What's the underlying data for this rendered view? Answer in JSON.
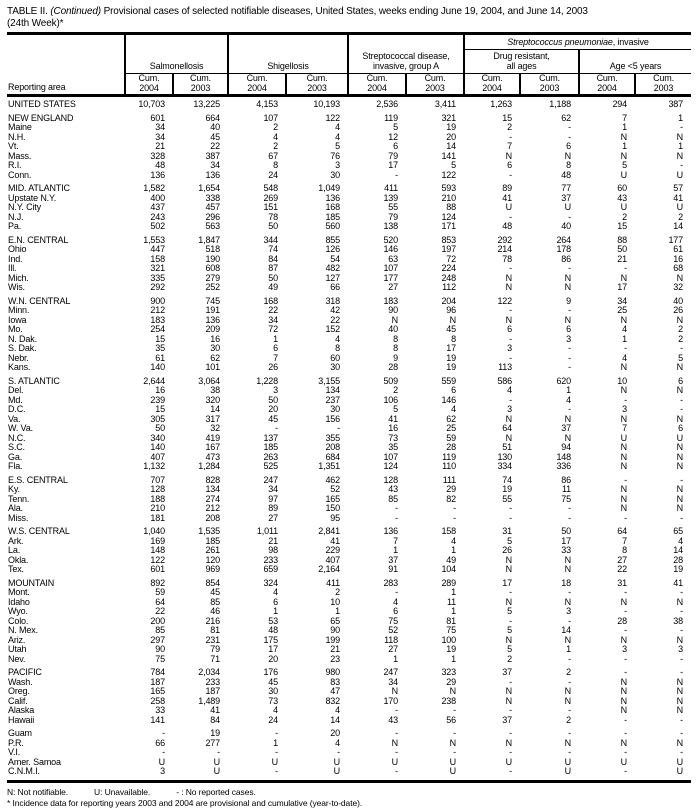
{
  "title": {
    "prefix": "TABLE II. ",
    "continued": "(Continued)",
    "rest": " Provisional cases of selected notifiable diseases, United States, weeks ending June 19, 2004, and June 14, 2003",
    "line2": "(24th Week)*"
  },
  "table": {
    "header": {
      "reporting_area": "Reporting area",
      "strep_pneumo": {
        "italic": "Streptococcus pneumoniae",
        "rest": ", invasive"
      },
      "groups": [
        {
          "label": "Salmonellosis"
        },
        {
          "label": "Shigellosis"
        },
        {
          "line1": "Streptococcal disease,",
          "line2": "invasive, group A"
        },
        {
          "line1": "Drug resistant,",
          "line2": "all ages"
        },
        {
          "label": "Age <5 years"
        }
      ],
      "columns": [
        {
          "cum": "Cum.",
          "year": "2004"
        },
        {
          "cum": "Cum.",
          "year": "2003"
        },
        {
          "cum": "Cum.",
          "year": "2004"
        },
        {
          "cum": "Cum.",
          "year": "2003"
        },
        {
          "cum": "Cum.",
          "year": "2004"
        },
        {
          "cum": "Cum.",
          "year": "2003"
        },
        {
          "cum": "Cum.",
          "year": "2004"
        },
        {
          "cum": "Cum.",
          "year": "2003"
        },
        {
          "cum": "Cum.",
          "year": "2004"
        },
        {
          "cum": "Cum.",
          "year": "2003"
        }
      ]
    },
    "rows": [
      {
        "area": "UNITED STATES",
        "values": [
          "10,703",
          "13,225",
          "4,153",
          "10,193",
          "2,536",
          "3,411",
          "1,263",
          "1,188",
          "294",
          "387"
        ]
      },
      {
        "area": "NEW ENGLAND",
        "section_start": true,
        "values": [
          "601",
          "664",
          "107",
          "122",
          "119",
          "321",
          "15",
          "62",
          "7",
          "1"
        ]
      },
      {
        "area": "Maine",
        "values": [
          "34",
          "40",
          "2",
          "4",
          "5",
          "19",
          "2",
          "-",
          "1",
          "-"
        ]
      },
      {
        "area": "N.H.",
        "values": [
          "34",
          "45",
          "4",
          "4",
          "12",
          "20",
          "-",
          "-",
          "N",
          "N"
        ]
      },
      {
        "area": "Vt.",
        "values": [
          "21",
          "22",
          "2",
          "5",
          "6",
          "14",
          "7",
          "6",
          "1",
          "1"
        ]
      },
      {
        "area": "Mass.",
        "values": [
          "328",
          "387",
          "67",
          "76",
          "79",
          "141",
          "N",
          "N",
          "N",
          "N"
        ]
      },
      {
        "area": "R.I.",
        "values": [
          "48",
          "34",
          "8",
          "3",
          "17",
          "5",
          "6",
          "8",
          "5",
          "-"
        ]
      },
      {
        "area": "Conn.",
        "values": [
          "136",
          "136",
          "24",
          "30",
          "-",
          "122",
          "-",
          "48",
          "U",
          "U"
        ]
      },
      {
        "area": "MID. ATLANTIC",
        "section_start": true,
        "values": [
          "1,582",
          "1,654",
          "548",
          "1,049",
          "411",
          "593",
          "89",
          "77",
          "60",
          "57"
        ]
      },
      {
        "area": "Upstate N.Y.",
        "values": [
          "400",
          "338",
          "269",
          "136",
          "139",
          "210",
          "41",
          "37",
          "43",
          "41"
        ]
      },
      {
        "area": "N.Y. City",
        "values": [
          "437",
          "457",
          "151",
          "168",
          "55",
          "88",
          "U",
          "U",
          "U",
          "U"
        ]
      },
      {
        "area": "N.J.",
        "values": [
          "243",
          "296",
          "78",
          "185",
          "79",
          "124",
          "-",
          "-",
          "2",
          "2"
        ]
      },
      {
        "area": "Pa.",
        "values": [
          "502",
          "563",
          "50",
          "560",
          "138",
          "171",
          "48",
          "40",
          "15",
          "14"
        ]
      },
      {
        "area": "E.N. CENTRAL",
        "section_start": true,
        "values": [
          "1,553",
          "1,847",
          "344",
          "855",
          "520",
          "853",
          "292",
          "264",
          "88",
          "177"
        ]
      },
      {
        "area": "Ohio",
        "values": [
          "447",
          "518",
          "74",
          "126",
          "146",
          "197",
          "214",
          "178",
          "50",
          "61"
        ]
      },
      {
        "area": "Ind.",
        "values": [
          "158",
          "190",
          "84",
          "54",
          "63",
          "72",
          "78",
          "86",
          "21",
          "16"
        ]
      },
      {
        "area": "Ill.",
        "values": [
          "321",
          "608",
          "87",
          "482",
          "107",
          "224",
          "-",
          "-",
          "-",
          "68"
        ]
      },
      {
        "area": "Mich.",
        "values": [
          "335",
          "279",
          "50",
          "127",
          "177",
          "248",
          "N",
          "N",
          "N",
          "N"
        ]
      },
      {
        "area": "Wis.",
        "values": [
          "292",
          "252",
          "49",
          "66",
          "27",
          "112",
          "N",
          "N",
          "17",
          "32"
        ]
      },
      {
        "area": "W.N. CENTRAL",
        "section_start": true,
        "values": [
          "900",
          "745",
          "168",
          "318",
          "183",
          "204",
          "122",
          "9",
          "34",
          "40"
        ]
      },
      {
        "area": "Minn.",
        "values": [
          "212",
          "191",
          "22",
          "42",
          "90",
          "96",
          "-",
          "-",
          "25",
          "26"
        ]
      },
      {
        "area": "Iowa",
        "values": [
          "183",
          "136",
          "34",
          "22",
          "N",
          "N",
          "N",
          "N",
          "N",
          "N"
        ]
      },
      {
        "area": "Mo.",
        "values": [
          "254",
          "209",
          "72",
          "152",
          "40",
          "45",
          "6",
          "6",
          "4",
          "2"
        ]
      },
      {
        "area": "N. Dak.",
        "values": [
          "15",
          "16",
          "1",
          "4",
          "8",
          "8",
          "-",
          "3",
          "1",
          "2"
        ]
      },
      {
        "area": "S. Dak.",
        "values": [
          "35",
          "30",
          "6",
          "8",
          "8",
          "17",
          "3",
          "-",
          "-",
          "-"
        ]
      },
      {
        "area": "Nebr.",
        "values": [
          "61",
          "62",
          "7",
          "60",
          "9",
          "19",
          "-",
          "-",
          "4",
          "5"
        ]
      },
      {
        "area": "Kans.",
        "values": [
          "140",
          "101",
          "26",
          "30",
          "28",
          "19",
          "113",
          "-",
          "N",
          "N"
        ]
      },
      {
        "area": "S. ATLANTIC",
        "section_start": true,
        "values": [
          "2,644",
          "3,064",
          "1,228",
          "3,155",
          "509",
          "559",
          "586",
          "620",
          "10",
          "6"
        ]
      },
      {
        "area": "Del.",
        "values": [
          "16",
          "38",
          "3",
          "134",
          "2",
          "6",
          "4",
          "1",
          "N",
          "N"
        ]
      },
      {
        "area": "Md.",
        "values": [
          "239",
          "320",
          "50",
          "237",
          "106",
          "146",
          "-",
          "4",
          "-",
          "-"
        ]
      },
      {
        "area": "D.C.",
        "values": [
          "15",
          "14",
          "20",
          "30",
          "5",
          "4",
          "3",
          "-",
          "3",
          "-"
        ]
      },
      {
        "area": "Va.",
        "values": [
          "305",
          "317",
          "45",
          "156",
          "41",
          "62",
          "N",
          "N",
          "N",
          "N"
        ]
      },
      {
        "area": "W. Va.",
        "values": [
          "50",
          "32",
          "-",
          "-",
          "16",
          "25",
          "64",
          "37",
          "7",
          "6"
        ]
      },
      {
        "area": "N.C.",
        "values": [
          "340",
          "419",
          "137",
          "355",
          "73",
          "59",
          "N",
          "N",
          "U",
          "U"
        ]
      },
      {
        "area": "S.C.",
        "values": [
          "140",
          "167",
          "185",
          "208",
          "35",
          "28",
          "51",
          "94",
          "N",
          "N"
        ]
      },
      {
        "area": "Ga.",
        "values": [
          "407",
          "473",
          "263",
          "684",
          "107",
          "119",
          "130",
          "148",
          "N",
          "N"
        ]
      },
      {
        "area": "Fla.",
        "values": [
          "1,132",
          "1,284",
          "525",
          "1,351",
          "124",
          "110",
          "334",
          "336",
          "N",
          "N"
        ]
      },
      {
        "area": "E.S. CENTRAL",
        "section_start": true,
        "values": [
          "707",
          "828",
          "247",
          "462",
          "128",
          "111",
          "74",
          "86",
          "-",
          "-"
        ]
      },
      {
        "area": "Ky.",
        "values": [
          "128",
          "134",
          "34",
          "52",
          "43",
          "29",
          "19",
          "11",
          "N",
          "N"
        ]
      },
      {
        "area": "Tenn.",
        "values": [
          "188",
          "274",
          "97",
          "165",
          "85",
          "82",
          "55",
          "75",
          "N",
          "N"
        ]
      },
      {
        "area": "Ala.",
        "values": [
          "210",
          "212",
          "89",
          "150",
          "-",
          "-",
          "-",
          "-",
          "N",
          "N"
        ]
      },
      {
        "area": "Miss.",
        "values": [
          "181",
          "208",
          "27",
          "95",
          "-",
          "-",
          "-",
          "-",
          "-",
          "-"
        ]
      },
      {
        "area": "W.S. CENTRAL",
        "section_start": true,
        "values": [
          "1,040",
          "1,535",
          "1,011",
          "2,841",
          "136",
          "158",
          "31",
          "50",
          "64",
          "65"
        ]
      },
      {
        "area": "Ark.",
        "values": [
          "169",
          "185",
          "21",
          "41",
          "7",
          "4",
          "5",
          "17",
          "7",
          "4"
        ]
      },
      {
        "area": "La.",
        "values": [
          "148",
          "261",
          "98",
          "229",
          "1",
          "1",
          "26",
          "33",
          "8",
          "14"
        ]
      },
      {
        "area": "Okla.",
        "values": [
          "122",
          "120",
          "233",
          "407",
          "37",
          "49",
          "N",
          "N",
          "27",
          "28"
        ]
      },
      {
        "area": "Tex.",
        "values": [
          "601",
          "969",
          "659",
          "2,164",
          "91",
          "104",
          "N",
          "N",
          "22",
          "19"
        ]
      },
      {
        "area": "MOUNTAIN",
        "section_start": true,
        "values": [
          "892",
          "854",
          "324",
          "411",
          "283",
          "289",
          "17",
          "18",
          "31",
          "41"
        ]
      },
      {
        "area": "Mont.",
        "values": [
          "59",
          "45",
          "4",
          "2",
          "-",
          "1",
          "-",
          "-",
          "-",
          "-"
        ]
      },
      {
        "area": "Idaho",
        "values": [
          "64",
          "85",
          "6",
          "10",
          "4",
          "11",
          "N",
          "N",
          "N",
          "N"
        ]
      },
      {
        "area": "Wyo.",
        "values": [
          "22",
          "46",
          "1",
          "1",
          "6",
          "1",
          "5",
          "3",
          "-",
          "-"
        ]
      },
      {
        "area": "Colo.",
        "values": [
          "200",
          "216",
          "53",
          "65",
          "75",
          "81",
          "-",
          "-",
          "28",
          "38"
        ]
      },
      {
        "area": "N. Mex.",
        "values": [
          "85",
          "81",
          "48",
          "90",
          "52",
          "75",
          "5",
          "14",
          "-",
          "-"
        ]
      },
      {
        "area": "Ariz.",
        "values": [
          "297",
          "231",
          "175",
          "199",
          "118",
          "100",
          "N",
          "N",
          "N",
          "N"
        ]
      },
      {
        "area": "Utah",
        "values": [
          "90",
          "79",
          "17",
          "21",
          "27",
          "19",
          "5",
          "1",
          "3",
          "3"
        ]
      },
      {
        "area": "Nev.",
        "values": [
          "75",
          "71",
          "20",
          "23",
          "1",
          "1",
          "2",
          "-",
          "-",
          "-"
        ]
      },
      {
        "area": "PACIFIC",
        "section_start": true,
        "values": [
          "784",
          "2,034",
          "176",
          "980",
          "247",
          "323",
          "37",
          "2",
          "-",
          "-"
        ]
      },
      {
        "area": "Wash.",
        "values": [
          "187",
          "233",
          "45",
          "83",
          "34",
          "29",
          "-",
          "-",
          "N",
          "N"
        ]
      },
      {
        "area": "Oreg.",
        "values": [
          "165",
          "187",
          "30",
          "47",
          "N",
          "N",
          "N",
          "N",
          "N",
          "N"
        ]
      },
      {
        "area": "Calif.",
        "values": [
          "258",
          "1,489",
          "73",
          "832",
          "170",
          "238",
          "N",
          "N",
          "N",
          "N"
        ]
      },
      {
        "area": "Alaska",
        "values": [
          "33",
          "41",
          "4",
          "4",
          "-",
          "-",
          "-",
          "-",
          "N",
          "N"
        ]
      },
      {
        "area": "Hawaii",
        "values": [
          "141",
          "84",
          "24",
          "14",
          "43",
          "56",
          "37",
          "2",
          "-",
          "-"
        ]
      },
      {
        "area": "Guam",
        "section_start": true,
        "values": [
          "-",
          "19",
          "-",
          "20",
          "-",
          "-",
          "-",
          "-",
          "-",
          "-"
        ]
      },
      {
        "area": "P.R.",
        "values": [
          "66",
          "277",
          "1",
          "4",
          "N",
          "N",
          "N",
          "N",
          "N",
          "N"
        ]
      },
      {
        "area": "V.I.",
        "values": [
          "-",
          "-",
          "-",
          "-",
          "-",
          "-",
          "-",
          "-",
          "-",
          "-"
        ]
      },
      {
        "area": "Amer. Samoa",
        "values": [
          "U",
          "U",
          "U",
          "U",
          "U",
          "U",
          "U",
          "U",
          "U",
          "U"
        ]
      },
      {
        "area": "C.N.M.I.",
        "values": [
          "3",
          "U",
          "-",
          "U",
          "-",
          "U",
          "-",
          "U",
          "-",
          "U"
        ]
      }
    ]
  },
  "footnotes": {
    "n": "N: Not notifiable.",
    "u": "U: Unavailable.",
    "dash": "- : No reported cases.",
    "star": "* Incidence data for reporting years 2003 and 2004 are provisional and cumulative (year-to-date)."
  }
}
